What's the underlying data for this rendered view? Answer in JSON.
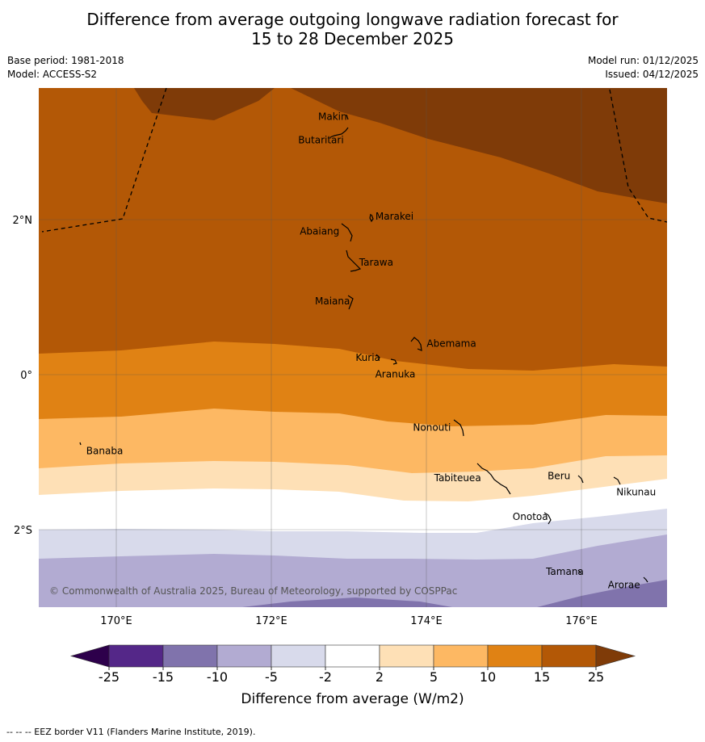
{
  "title": {
    "line1": "Difference from average outgoing longwave radiation forecast for",
    "line2": "15 to 28 December 2025"
  },
  "meta": {
    "base_period": "Base period: 1981-2018",
    "model": "Model: ACCESS-S2",
    "model_run": "Model run: 01/12/2025",
    "issued": "Issued: 04/12/2025"
  },
  "map": {
    "lon_range": [
      169,
      177.1
    ],
    "lat_range": [
      -3,
      3.7
    ],
    "lon_ticks": [
      {
        "value": 170,
        "label": "170°E"
      },
      {
        "value": 172,
        "label": "172°E"
      },
      {
        "value": 174,
        "label": "174°E"
      },
      {
        "value": 176,
        "label": "176°E"
      }
    ],
    "lat_ticks": [
      {
        "value": 2,
        "label": "2°N"
      },
      {
        "value": 0,
        "label": "0°"
      },
      {
        "value": -2,
        "label": "2°S"
      }
    ],
    "islands": [
      {
        "name": "Makin",
        "lon": 173.0,
        "lat": 3.35
      },
      {
        "name": "Butaritari",
        "lon": 172.95,
        "lat": 3.08
      },
      {
        "name": "Marakei",
        "lon": 173.28,
        "lat": 2.0
      },
      {
        "name": "Abaiang",
        "lon": 172.95,
        "lat": 1.85
      },
      {
        "name": "Tarawa",
        "lon": 173.05,
        "lat": 1.45
      },
      {
        "name": "Maiana",
        "lon": 173.0,
        "lat": 0.95
      },
      {
        "name": "Abemama",
        "lon": 173.9,
        "lat": 0.4
      },
      {
        "name": "Kuria",
        "lon": 173.4,
        "lat": 0.22
      },
      {
        "name": "Aranuka",
        "lon": 173.6,
        "lat": 0.17
      },
      {
        "name": "Nonouti",
        "lon": 174.4,
        "lat": -0.65
      },
      {
        "name": "Banaba",
        "lon": 169.55,
        "lat": -0.88
      },
      {
        "name": "Tabiteuea",
        "lon": 174.85,
        "lat": -1.3
      },
      {
        "name": "Beru",
        "lon": 175.98,
        "lat": -1.33
      },
      {
        "name": "Nikunau",
        "lon": 176.45,
        "lat": -1.35
      },
      {
        "name": "Onotoa",
        "lon": 175.55,
        "lat": -1.8
      },
      {
        "name": "Tamana",
        "lon": 175.98,
        "lat": -2.5
      },
      {
        "name": "Arorae",
        "lon": 176.82,
        "lat": -2.65
      }
    ],
    "copyright": "© Commonwealth of Australia 2025, Bureau of Meteorology, supported by COSPPac"
  },
  "legend": {
    "ticks": [
      "-25",
      "-15",
      "-10",
      "-5",
      "-2",
      "2",
      "5",
      "10",
      "15",
      "25"
    ],
    "colors": [
      "#2d004b",
      "#542788",
      "#8073ac",
      "#b2abd2",
      "#d8daeb",
      "#ffffff",
      "#fee0b6",
      "#fdb863",
      "#e08214",
      "#b35806",
      "#7f3b08"
    ],
    "label": "Difference from average (W/m2)"
  },
  "footer": "--  --  -- EEZ border V11 (Flanders Marine Institute, 2019)."
}
